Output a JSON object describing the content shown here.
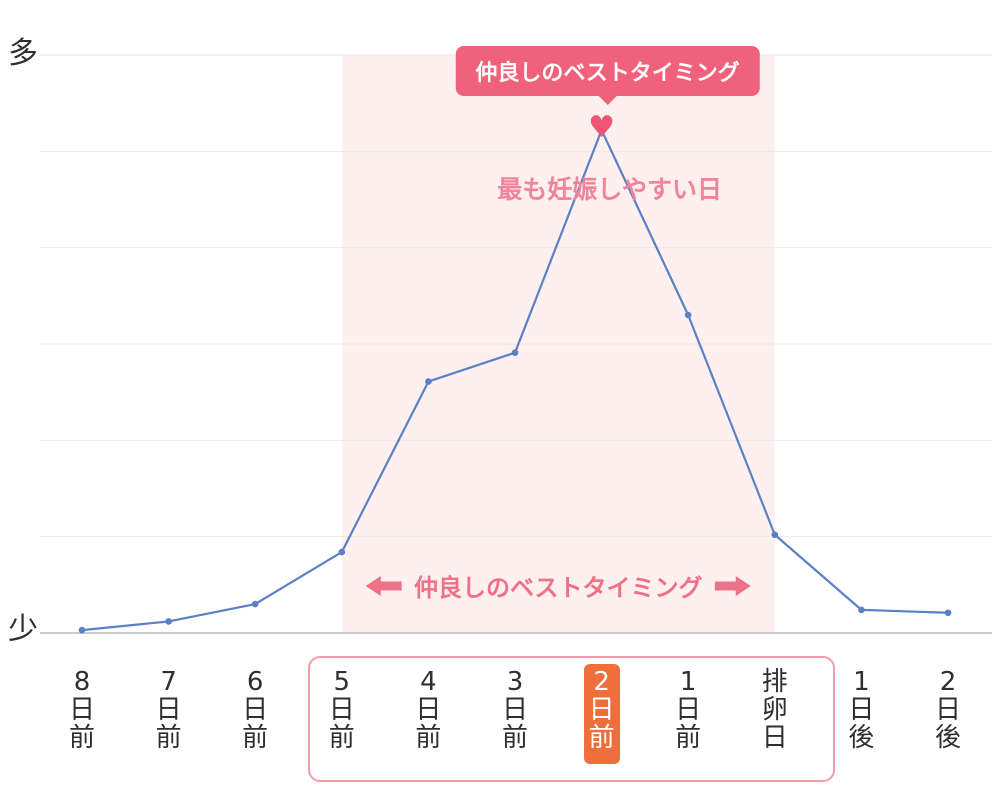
{
  "chart_data": {
    "type": "line",
    "categories": [
      "8日前",
      "7日前",
      "6日前",
      "5日前",
      "4日前",
      "3日前",
      "2日前",
      "1日前",
      "排卵日",
      "1日後",
      "2日後"
    ],
    "values": [
      0.5,
      2,
      5,
      14,
      43.5,
      48.5,
      87,
      55,
      17,
      4,
      3.5
    ],
    "ylim": [
      0,
      100
    ],
    "grid": true,
    "y_axis": {
      "high_label": "多",
      "low_label": "少"
    },
    "fertile_window": [
      "5日前",
      "排卵日"
    ],
    "peak_category": "2日前"
  },
  "annotations": {
    "callout_label": "仲良しのベストタイミング",
    "peak_label": "最も妊娠しやすい日",
    "range_label": "仲良しのベストタイミング",
    "heart_icon": "♥"
  },
  "colors": {
    "line": "#5b80c6",
    "region": "#fdf0ee",
    "badge": "#f0617c",
    "heart": "#ec5576",
    "peak_text": "#f0849b",
    "range_text": "#ee7187",
    "highlight": "#ef6f3c",
    "box_border": "#f29cab",
    "grid": "#e9e9e9",
    "axis": "#cccccc",
    "label_text": "#2f2f2f"
  }
}
